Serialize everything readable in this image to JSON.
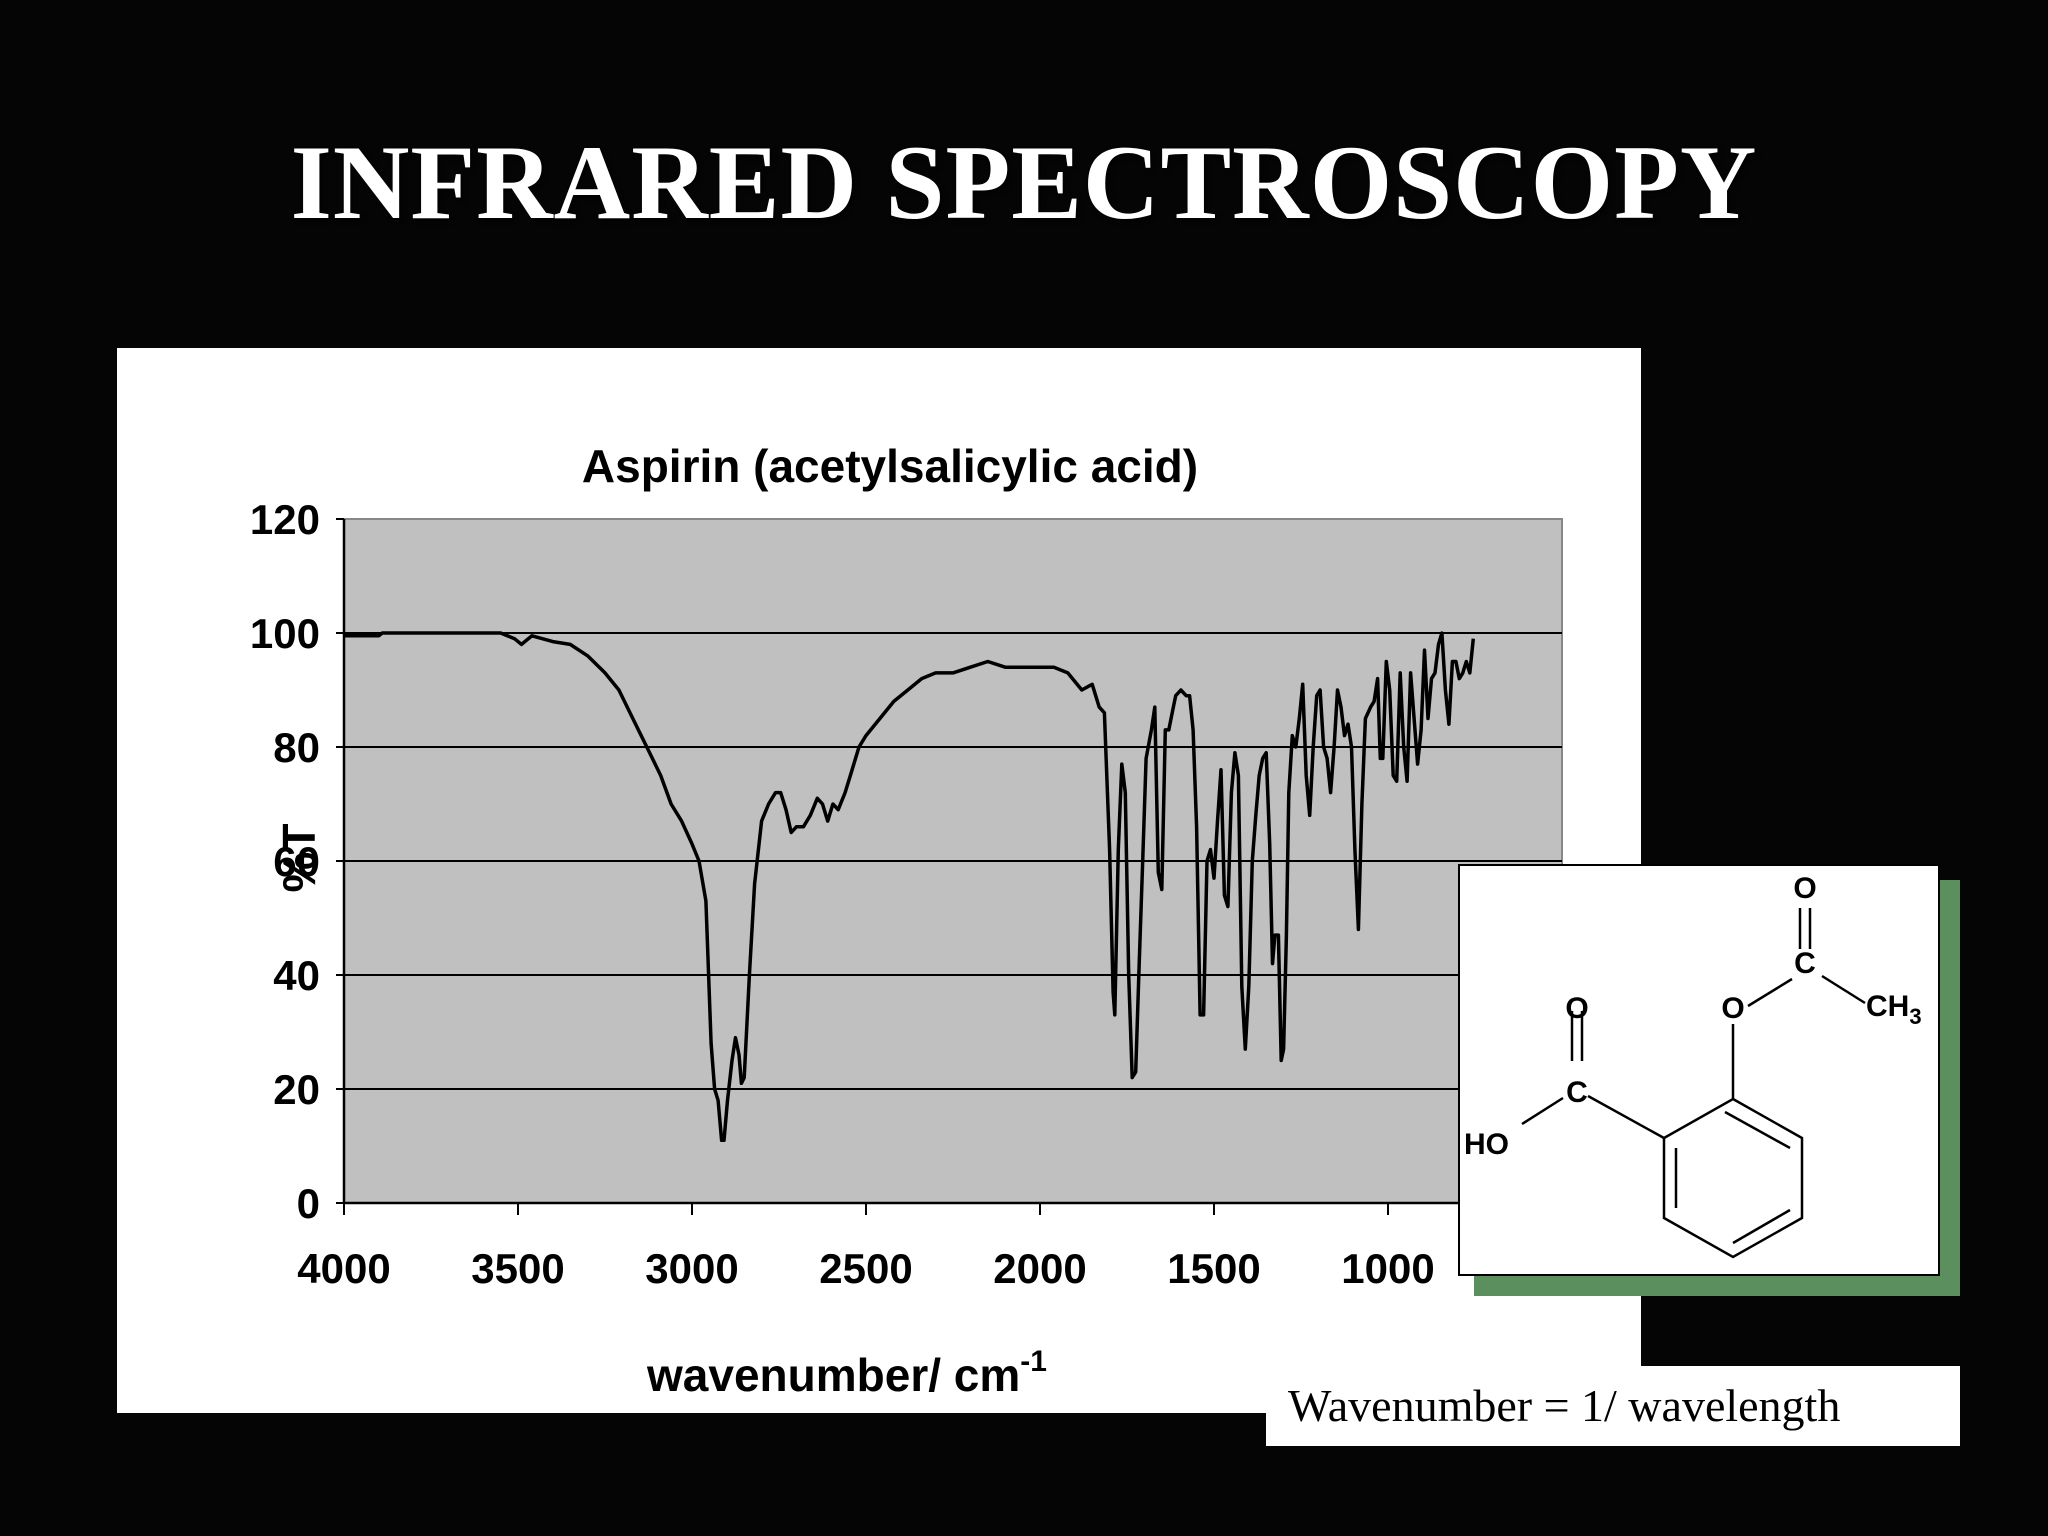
{
  "slide": {
    "title": "INFRARED SPECTROSCOPY",
    "note": "Wavenumber = 1/ wavelength"
  },
  "colors": {
    "background": "#050505",
    "plot_area": "#c0c0c0",
    "line": "#000000",
    "structure_shadow": "#5b8f5e"
  },
  "chart_data": {
    "type": "line",
    "title": "Aspirin (acetylsalicylic acid)",
    "xlabel": "wavenumber/ cm",
    "xlabel_superscript": "-1",
    "ylabel": "%T",
    "xlim": [
      4000,
      500
    ],
    "ylim": [
      0,
      120
    ],
    "x_reversed": true,
    "x_ticks": [
      4000,
      3500,
      3000,
      2500,
      2000,
      1500,
      1000
    ],
    "y_ticks": [
      0,
      20,
      40,
      60,
      80,
      100,
      120
    ],
    "grid": "horizontal",
    "legend": "none",
    "series": [
      {
        "values": [
          [
            4000,
            99.5
          ],
          [
            3900,
            99.5
          ],
          [
            3890,
            100
          ],
          [
            3550,
            100
          ],
          [
            3510,
            99
          ],
          [
            3490,
            98
          ],
          [
            3460,
            99.5
          ],
          [
            3400,
            98.5
          ],
          [
            3350,
            98
          ],
          [
            3300,
            96
          ],
          [
            3250,
            93
          ],
          [
            3210,
            90
          ],
          [
            3170,
            85
          ],
          [
            3130,
            80
          ],
          [
            3090,
            75
          ],
          [
            3060,
            70
          ],
          [
            3030,
            67
          ],
          [
            3000,
            63
          ],
          [
            2980,
            60
          ],
          [
            2960,
            53
          ],
          [
            2945,
            28
          ],
          [
            2935,
            20
          ],
          [
            2925,
            18
          ],
          [
            2915,
            11
          ],
          [
            2908,
            11
          ],
          [
            2898,
            18
          ],
          [
            2885,
            25
          ],
          [
            2875,
            29
          ],
          [
            2865,
            26
          ],
          [
            2858,
            21
          ],
          [
            2850,
            22
          ],
          [
            2835,
            40
          ],
          [
            2820,
            56
          ],
          [
            2800,
            67
          ],
          [
            2780,
            70
          ],
          [
            2760,
            72
          ],
          [
            2745,
            72
          ],
          [
            2730,
            69
          ],
          [
            2715,
            65
          ],
          [
            2700,
            66
          ],
          [
            2680,
            66
          ],
          [
            2660,
            68
          ],
          [
            2640,
            71
          ],
          [
            2625,
            70
          ],
          [
            2610,
            67
          ],
          [
            2595,
            70
          ],
          [
            2580,
            69
          ],
          [
            2560,
            72
          ],
          [
            2540,
            76
          ],
          [
            2520,
            80
          ],
          [
            2500,
            82
          ],
          [
            2460,
            85
          ],
          [
            2420,
            88
          ],
          [
            2380,
            90
          ],
          [
            2340,
            92
          ],
          [
            2300,
            93
          ],
          [
            2250,
            93
          ],
          [
            2200,
            94
          ],
          [
            2150,
            95
          ],
          [
            2100,
            94
          ],
          [
            2050,
            94
          ],
          [
            2000,
            94
          ],
          [
            1960,
            94
          ],
          [
            1920,
            93
          ],
          [
            1880,
            90
          ],
          [
            1850,
            91
          ],
          [
            1830,
            87
          ],
          [
            1815,
            86
          ],
          [
            1800,
            62
          ],
          [
            1790,
            37
          ],
          [
            1785,
            33
          ],
          [
            1775,
            62
          ],
          [
            1765,
            77
          ],
          [
            1755,
            72
          ],
          [
            1745,
            40
          ],
          [
            1735,
            22
          ],
          [
            1725,
            23
          ],
          [
            1715,
            42
          ],
          [
            1705,
            60
          ],
          [
            1695,
            78
          ],
          [
            1680,
            83
          ],
          [
            1670,
            87
          ],
          [
            1660,
            58
          ],
          [
            1650,
            55
          ],
          [
            1640,
            83
          ],
          [
            1630,
            83
          ],
          [
            1620,
            86
          ],
          [
            1610,
            89
          ],
          [
            1595,
            90
          ],
          [
            1580,
            89
          ],
          [
            1570,
            89
          ],
          [
            1560,
            83
          ],
          [
            1550,
            66
          ],
          [
            1540,
            33
          ],
          [
            1530,
            33
          ],
          [
            1520,
            60
          ],
          [
            1510,
            62
          ],
          [
            1500,
            57
          ],
          [
            1490,
            67
          ],
          [
            1480,
            76
          ],
          [
            1475,
            65
          ],
          [
            1470,
            54
          ],
          [
            1460,
            52
          ],
          [
            1450,
            72
          ],
          [
            1440,
            79
          ],
          [
            1430,
            75
          ],
          [
            1420,
            38
          ],
          [
            1410,
            27
          ],
          [
            1400,
            38
          ],
          [
            1390,
            60
          ],
          [
            1380,
            68
          ],
          [
            1370,
            75
          ],
          [
            1360,
            78
          ],
          [
            1350,
            79
          ],
          [
            1340,
            63
          ],
          [
            1332,
            42
          ],
          [
            1325,
            47
          ],
          [
            1315,
            47
          ],
          [
            1307,
            25
          ],
          [
            1300,
            27
          ],
          [
            1292,
            47
          ],
          [
            1285,
            72
          ],
          [
            1275,
            82
          ],
          [
            1265,
            80
          ],
          [
            1255,
            85
          ],
          [
            1245,
            91
          ],
          [
            1235,
            75
          ],
          [
            1225,
            68
          ],
          [
            1215,
            80
          ],
          [
            1205,
            89
          ],
          [
            1195,
            90
          ],
          [
            1185,
            80
          ],
          [
            1175,
            78
          ],
          [
            1165,
            72
          ],
          [
            1155,
            80
          ],
          [
            1145,
            90
          ],
          [
            1135,
            87
          ],
          [
            1125,
            82
          ],
          [
            1115,
            84
          ],
          [
            1105,
            80
          ],
          [
            1095,
            62
          ],
          [
            1085,
            48
          ],
          [
            1075,
            70
          ],
          [
            1065,
            85
          ],
          [
            1050,
            87
          ],
          [
            1040,
            88
          ],
          [
            1030,
            92
          ],
          [
            1022,
            78
          ],
          [
            1015,
            78
          ],
          [
            1005,
            95
          ],
          [
            995,
            90
          ],
          [
            985,
            75
          ],
          [
            975,
            74
          ],
          [
            965,
            93
          ],
          [
            955,
            80
          ],
          [
            945,
            74
          ],
          [
            935,
            93
          ],
          [
            925,
            85
          ],
          [
            915,
            77
          ],
          [
            905,
            83
          ],
          [
            895,
            97
          ],
          [
            885,
            85
          ],
          [
            875,
            92
          ],
          [
            865,
            93
          ],
          [
            855,
            98
          ],
          [
            845,
            100
          ],
          [
            835,
            90
          ],
          [
            825,
            84
          ],
          [
            815,
            95
          ],
          [
            805,
            95
          ],
          [
            795,
            92
          ],
          [
            785,
            93
          ],
          [
            775,
            95
          ],
          [
            765,
            93
          ],
          [
            755,
            99
          ]
        ]
      }
    ]
  },
  "structure": {
    "labels": {
      "carbonyl_o_left": "O",
      "carbon_left": "C",
      "hydroxyl": "HO",
      "carbonyl_o_right": "O",
      "carbon_right": "C",
      "ester_o": "O",
      "methyl": "CH",
      "methyl_subscript": "3"
    }
  }
}
